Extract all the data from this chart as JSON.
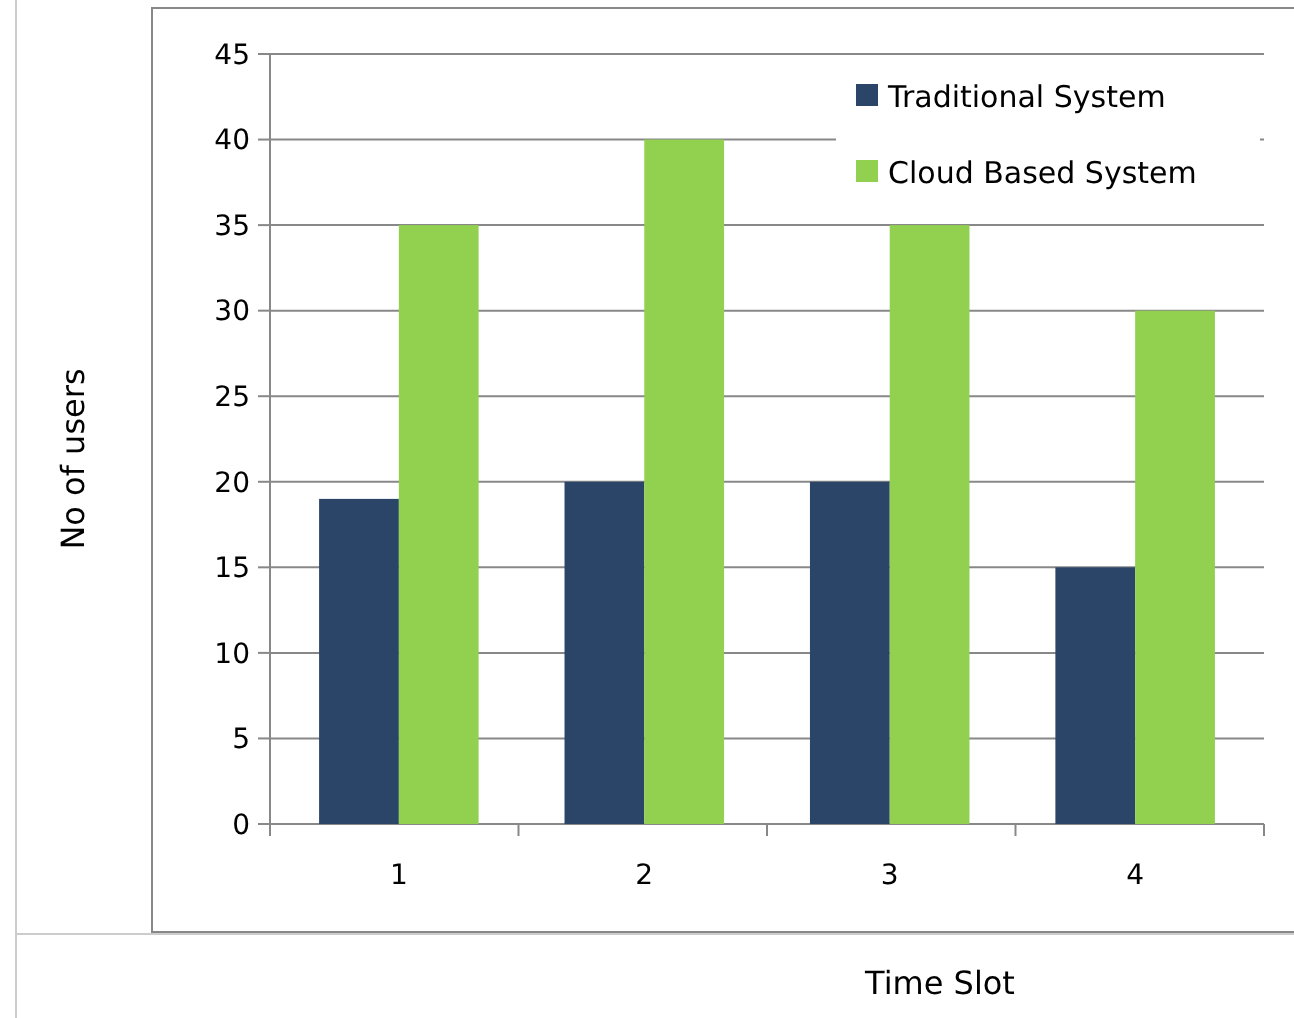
{
  "chart_data": {
    "type": "bar",
    "xlabel": "Time Slot",
    "ylabel": "No of users",
    "categories": [
      "1",
      "2",
      "3",
      "4"
    ],
    "series": [
      {
        "name": "Traditional System",
        "color": "#2a4568",
        "values": [
          19,
          20,
          20,
          15
        ]
      },
      {
        "name": "Cloud Based System",
        "color": "#92d050",
        "values": [
          35,
          40,
          35,
          30
        ]
      }
    ],
    "ylim": [
      0,
      45
    ],
    "yticks": [
      0,
      5,
      10,
      15,
      20,
      25,
      30,
      35,
      40,
      45
    ],
    "grid": "y",
    "legend": "top right"
  }
}
